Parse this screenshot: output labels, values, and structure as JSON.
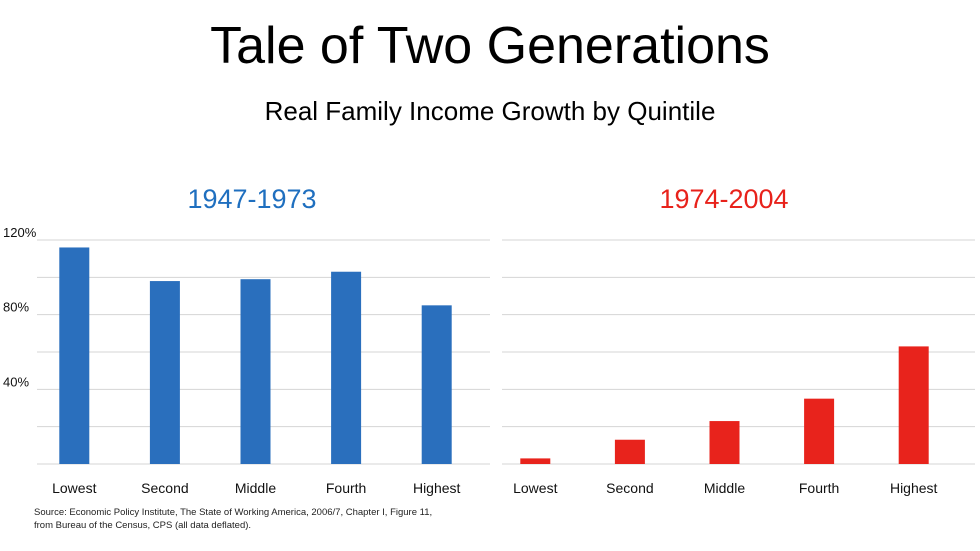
{
  "title": "Tale of Two Generations",
  "subtitle": "Real Family Income Growth by Quintile",
  "source": {
    "line1": "Source: Economic Policy Institute, The State of Working America, 2006/7, Chapter I, Figure 11,",
    "line2": "from Bureau of the Census, CPS (all data deflated)."
  },
  "colors": {
    "left": "#2a6fbd",
    "right": "#e8231c",
    "grid": "#d4d4d4"
  },
  "chart_data": [
    {
      "type": "bar",
      "title": "1947-1973",
      "categories": [
        "Lowest",
        "Second",
        "Middle",
        "Fourth",
        "Highest"
      ],
      "values": [
        116,
        98,
        99,
        103,
        85
      ],
      "ylim": [
        0,
        120
      ],
      "yticks": [
        40,
        80,
        120
      ],
      "ytick_labels": [
        "40%",
        "80%",
        "120%"
      ],
      "grid": true
    },
    {
      "type": "bar",
      "title": "1974-2004",
      "categories": [
        "Lowest",
        "Second",
        "Middle",
        "Fourth",
        "Highest"
      ],
      "values": [
        3,
        13,
        23,
        35,
        63
      ],
      "ylim": [
        0,
        120
      ],
      "grid": true
    }
  ]
}
